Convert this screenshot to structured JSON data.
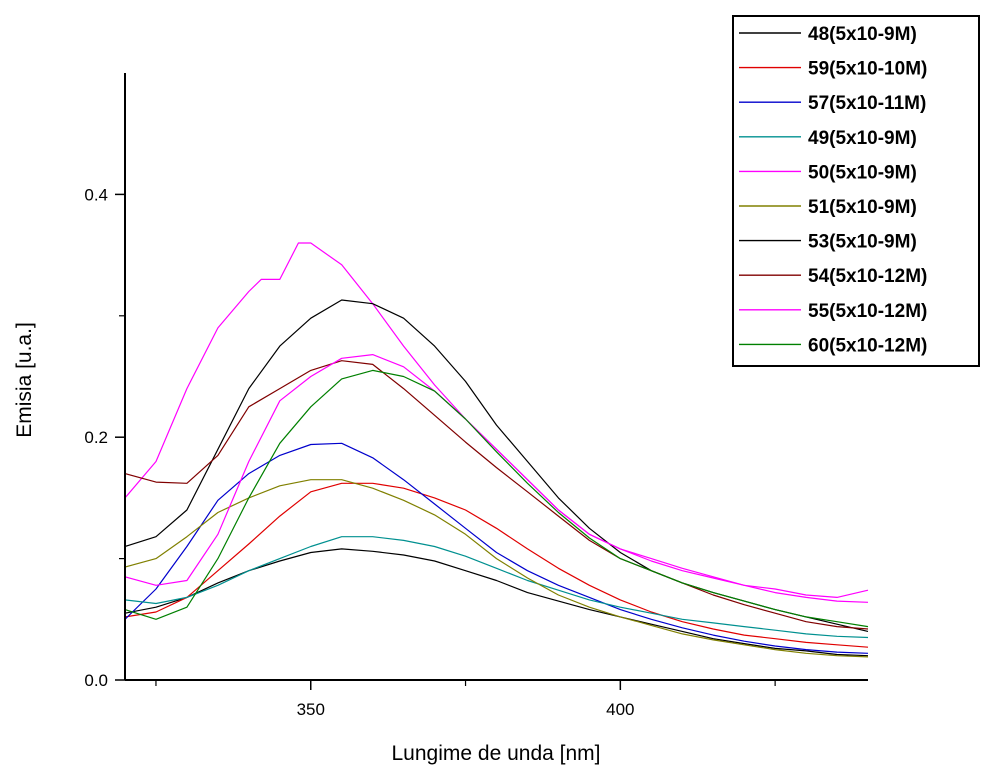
{
  "chart_data": {
    "type": "line",
    "title": "",
    "xlabel": "Lungime de unda [nm]",
    "ylabel": "Emisia [u.a.]",
    "xlim": [
      320,
      440
    ],
    "ylim": [
      0,
      0.5
    ],
    "x_major_ticks": [
      350,
      400
    ],
    "x_minor_ticks": [
      325,
      375,
      425
    ],
    "y_major_ticks": [
      0.0,
      0.2,
      0.4
    ],
    "y_minor_ticks": [
      0.1,
      0.3
    ],
    "x_tick_labels": [
      "350",
      "400"
    ],
    "y_tick_labels": [
      "0.0",
      "0.2",
      "0.4"
    ],
    "grid": false,
    "legend_position": "top-right",
    "series": [
      {
        "name": "48(5x10-9M)",
        "color": "#000000",
        "points": [
          [
            320,
            0.055
          ],
          [
            325,
            0.06
          ],
          [
            330,
            0.068
          ],
          [
            335,
            0.08
          ],
          [
            340,
            0.09
          ],
          [
            345,
            0.098
          ],
          [
            350,
            0.105
          ],
          [
            355,
            0.108
          ],
          [
            360,
            0.106
          ],
          [
            365,
            0.103
          ],
          [
            370,
            0.098
          ],
          [
            375,
            0.09
          ],
          [
            380,
            0.082
          ],
          [
            385,
            0.072
          ],
          [
            390,
            0.065
          ],
          [
            395,
            0.058
          ],
          [
            400,
            0.052
          ],
          [
            405,
            0.046
          ],
          [
            410,
            0.04
          ],
          [
            415,
            0.034
          ],
          [
            420,
            0.03
          ],
          [
            425,
            0.026
          ],
          [
            430,
            0.024
          ],
          [
            435,
            0.021
          ],
          [
            440,
            0.02
          ]
        ]
      },
      {
        "name": "59(5x10-10M)",
        "color": "#e00000",
        "points": [
          [
            320,
            0.052
          ],
          [
            325,
            0.056
          ],
          [
            330,
            0.068
          ],
          [
            335,
            0.09
          ],
          [
            340,
            0.112
          ],
          [
            345,
            0.135
          ],
          [
            350,
            0.155
          ],
          [
            355,
            0.162
          ],
          [
            360,
            0.162
          ],
          [
            365,
            0.158
          ],
          [
            370,
            0.15
          ],
          [
            375,
            0.14
          ],
          [
            380,
            0.125
          ],
          [
            385,
            0.108
          ],
          [
            390,
            0.092
          ],
          [
            395,
            0.078
          ],
          [
            400,
            0.066
          ],
          [
            405,
            0.056
          ],
          [
            410,
            0.048
          ],
          [
            415,
            0.042
          ],
          [
            420,
            0.037
          ],
          [
            425,
            0.034
          ],
          [
            430,
            0.031
          ],
          [
            435,
            0.029
          ],
          [
            440,
            0.027
          ]
        ]
      },
      {
        "name": "57(5x10-11M)",
        "color": "#0000cc",
        "points": [
          [
            320,
            0.05
          ],
          [
            325,
            0.075
          ],
          [
            330,
            0.11
          ],
          [
            335,
            0.148
          ],
          [
            340,
            0.17
          ],
          [
            345,
            0.185
          ],
          [
            350,
            0.194
          ],
          [
            355,
            0.195
          ],
          [
            360,
            0.183
          ],
          [
            365,
            0.165
          ],
          [
            370,
            0.145
          ],
          [
            375,
            0.125
          ],
          [
            380,
            0.105
          ],
          [
            385,
            0.09
          ],
          [
            390,
            0.078
          ],
          [
            395,
            0.068
          ],
          [
            400,
            0.058
          ],
          [
            405,
            0.05
          ],
          [
            410,
            0.043
          ],
          [
            415,
            0.037
          ],
          [
            420,
            0.032
          ],
          [
            425,
            0.028
          ],
          [
            430,
            0.025
          ],
          [
            435,
            0.023
          ],
          [
            440,
            0.022
          ]
        ]
      },
      {
        "name": "49(5x10-9M)",
        "color": "#009090",
        "points": [
          [
            320,
            0.066
          ],
          [
            325,
            0.063
          ],
          [
            330,
            0.068
          ],
          [
            335,
            0.078
          ],
          [
            340,
            0.09
          ],
          [
            345,
            0.1
          ],
          [
            350,
            0.11
          ],
          [
            355,
            0.118
          ],
          [
            360,
            0.118
          ],
          [
            365,
            0.115
          ],
          [
            370,
            0.11
          ],
          [
            375,
            0.102
          ],
          [
            380,
            0.092
          ],
          [
            385,
            0.082
          ],
          [
            390,
            0.074
          ],
          [
            395,
            0.066
          ],
          [
            400,
            0.06
          ],
          [
            405,
            0.055
          ],
          [
            410,
            0.05
          ],
          [
            415,
            0.047
          ],
          [
            420,
            0.044
          ],
          [
            425,
            0.041
          ],
          [
            430,
            0.038
          ],
          [
            435,
            0.036
          ],
          [
            440,
            0.035
          ]
        ]
      },
      {
        "name": "50(5x10-9M)",
        "color": "#ff00ff",
        "points": [
          [
            320,
            0.15
          ],
          [
            325,
            0.18
          ],
          [
            330,
            0.24
          ],
          [
            335,
            0.29
          ],
          [
            340,
            0.32
          ],
          [
            342,
            0.33
          ],
          [
            345,
            0.33
          ],
          [
            348,
            0.36
          ],
          [
            350,
            0.36
          ],
          [
            355,
            0.342
          ],
          [
            360,
            0.31
          ],
          [
            365,
            0.275
          ],
          [
            370,
            0.243
          ],
          [
            375,
            0.215
          ],
          [
            380,
            0.19
          ],
          [
            385,
            0.165
          ],
          [
            390,
            0.14
          ],
          [
            395,
            0.12
          ],
          [
            400,
            0.108
          ],
          [
            405,
            0.1
          ],
          [
            410,
            0.092
          ],
          [
            415,
            0.085
          ],
          [
            420,
            0.078
          ],
          [
            425,
            0.075
          ],
          [
            430,
            0.07
          ],
          [
            435,
            0.068
          ],
          [
            440,
            0.074
          ]
        ]
      },
      {
        "name": "51(5x10-9M)",
        "color": "#808000",
        "points": [
          [
            320,
            0.093
          ],
          [
            325,
            0.1
          ],
          [
            330,
            0.118
          ],
          [
            335,
            0.138
          ],
          [
            340,
            0.15
          ],
          [
            345,
            0.16
          ],
          [
            350,
            0.165
          ],
          [
            355,
            0.165
          ],
          [
            360,
            0.158
          ],
          [
            365,
            0.148
          ],
          [
            370,
            0.136
          ],
          [
            375,
            0.12
          ],
          [
            380,
            0.1
          ],
          [
            385,
            0.084
          ],
          [
            390,
            0.07
          ],
          [
            395,
            0.06
          ],
          [
            400,
            0.052
          ],
          [
            405,
            0.045
          ],
          [
            410,
            0.038
          ],
          [
            415,
            0.033
          ],
          [
            420,
            0.029
          ],
          [
            425,
            0.025
          ],
          [
            430,
            0.022
          ],
          [
            435,
            0.02
          ],
          [
            440,
            0.019
          ]
        ]
      },
      {
        "name": "53(5x10-9M)",
        "color": "#000000",
        "points": [
          [
            320,
            0.11
          ],
          [
            325,
            0.118
          ],
          [
            330,
            0.14
          ],
          [
            335,
            0.19
          ],
          [
            340,
            0.24
          ],
          [
            345,
            0.275
          ],
          [
            350,
            0.298
          ],
          [
            355,
            0.313
          ],
          [
            360,
            0.31
          ],
          [
            365,
            0.298
          ],
          [
            370,
            0.275
          ],
          [
            375,
            0.246
          ],
          [
            380,
            0.21
          ],
          [
            385,
            0.18
          ],
          [
            390,
            0.15
          ],
          [
            395,
            0.125
          ],
          [
            400,
            0.105
          ],
          [
            405,
            0.09
          ],
          [
            410,
            0.08
          ],
          [
            415,
            0.072
          ],
          [
            420,
            0.065
          ],
          [
            425,
            0.058
          ],
          [
            430,
            0.052
          ],
          [
            435,
            0.046
          ],
          [
            440,
            0.04
          ]
        ]
      },
      {
        "name": "54(5x10-12M)",
        "color": "#800000",
        "points": [
          [
            320,
            0.17
          ],
          [
            325,
            0.163
          ],
          [
            330,
            0.162
          ],
          [
            335,
            0.185
          ],
          [
            340,
            0.225
          ],
          [
            345,
            0.24
          ],
          [
            350,
            0.255
          ],
          [
            355,
            0.263
          ],
          [
            360,
            0.26
          ],
          [
            365,
            0.24
          ],
          [
            370,
            0.218
          ],
          [
            375,
            0.196
          ],
          [
            380,
            0.175
          ],
          [
            385,
            0.155
          ],
          [
            390,
            0.135
          ],
          [
            395,
            0.115
          ],
          [
            400,
            0.1
          ],
          [
            405,
            0.09
          ],
          [
            410,
            0.08
          ],
          [
            415,
            0.07
          ],
          [
            420,
            0.062
          ],
          [
            425,
            0.055
          ],
          [
            430,
            0.048
          ],
          [
            435,
            0.044
          ],
          [
            440,
            0.042
          ]
        ]
      },
      {
        "name": "55(5x10-12M)",
        "color": "#ff00ff",
        "points": [
          [
            320,
            0.085
          ],
          [
            325,
            0.078
          ],
          [
            330,
            0.082
          ],
          [
            335,
            0.12
          ],
          [
            340,
            0.18
          ],
          [
            345,
            0.23
          ],
          [
            350,
            0.25
          ],
          [
            355,
            0.265
          ],
          [
            360,
            0.268
          ],
          [
            365,
            0.258
          ],
          [
            370,
            0.238
          ],
          [
            375,
            0.215
          ],
          [
            380,
            0.19
          ],
          [
            385,
            0.165
          ],
          [
            390,
            0.14
          ],
          [
            395,
            0.12
          ],
          [
            400,
            0.108
          ],
          [
            405,
            0.098
          ],
          [
            410,
            0.09
          ],
          [
            415,
            0.084
          ],
          [
            420,
            0.078
          ],
          [
            425,
            0.072
          ],
          [
            430,
            0.068
          ],
          [
            435,
            0.065
          ],
          [
            440,
            0.064
          ]
        ]
      },
      {
        "name": "60(5x10-12M)",
        "color": "#008000",
        "points": [
          [
            320,
            0.058
          ],
          [
            325,
            0.05
          ],
          [
            330,
            0.06
          ],
          [
            335,
            0.1
          ],
          [
            340,
            0.15
          ],
          [
            345,
            0.195
          ],
          [
            350,
            0.225
          ],
          [
            355,
            0.248
          ],
          [
            360,
            0.255
          ],
          [
            365,
            0.25
          ],
          [
            370,
            0.238
          ],
          [
            375,
            0.215
          ],
          [
            380,
            0.188
          ],
          [
            385,
            0.162
          ],
          [
            390,
            0.138
          ],
          [
            395,
            0.117
          ],
          [
            400,
            0.1
          ],
          [
            405,
            0.09
          ],
          [
            410,
            0.08
          ],
          [
            415,
            0.072
          ],
          [
            420,
            0.065
          ],
          [
            425,
            0.058
          ],
          [
            430,
            0.052
          ],
          [
            435,
            0.048
          ],
          [
            440,
            0.044
          ]
        ]
      }
    ]
  }
}
